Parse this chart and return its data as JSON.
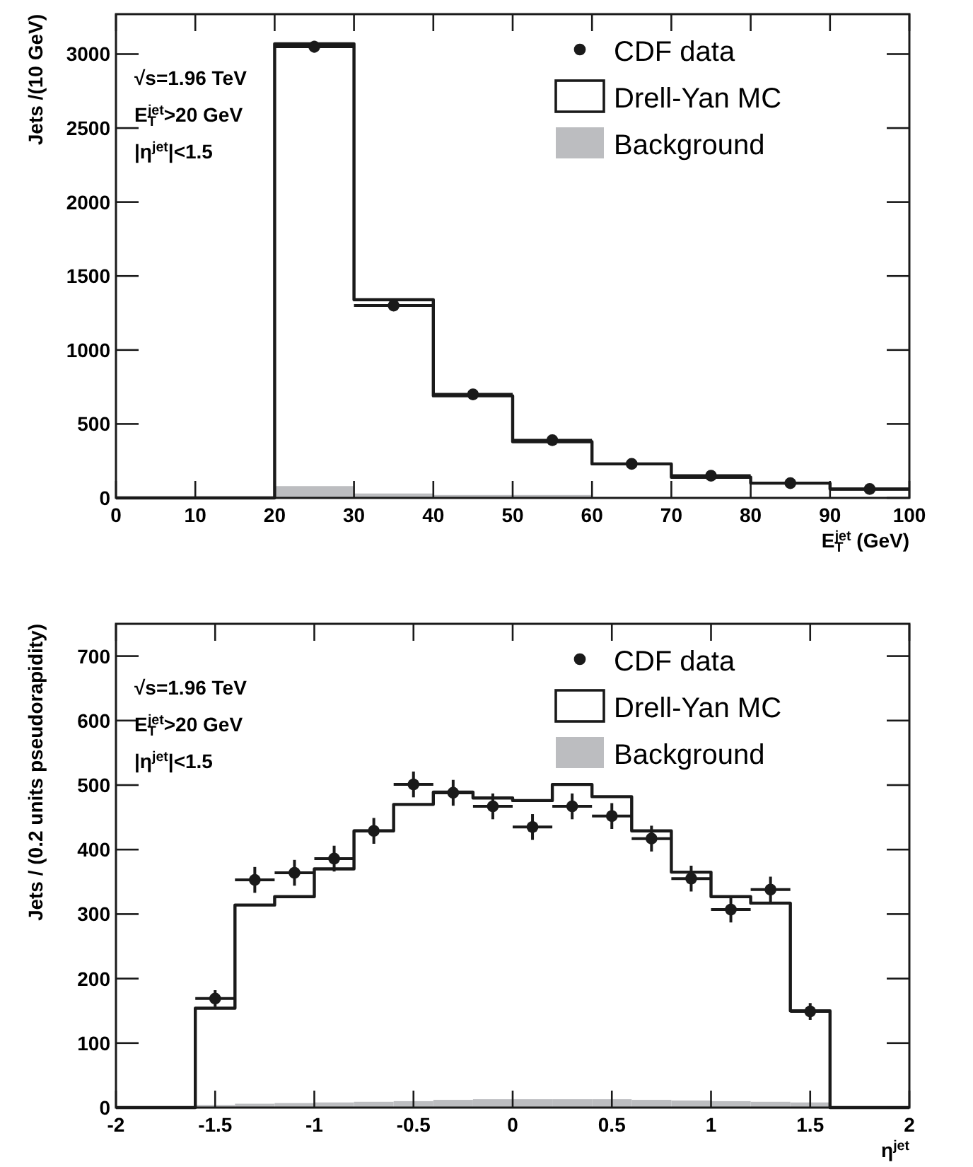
{
  "chart_data": [
    {
      "type": "histogram",
      "xlabel": "E$_{T}$$^{jet}$ (GeV)",
      "ylabel": "Jets /(10 GeV)",
      "bins": [
        0,
        10,
        20,
        30,
        40,
        50,
        60
      ],
      "series": [
        {
          "name": "CDF data",
          "type": "scatter",
          "marker": "circle",
          "color": "#1a1a1a",
          "x": [
            25,
            35,
            45,
            55,
            65,
            75,
            85,
            95
          ],
          "values": [
            3050,
            1300,
            700,
            390,
            230,
            150,
            100,
            60
          ],
          "errors": [
            40,
            null,
            null,
            null,
            null,
            null,
            null,
            null
          ],
          "xerrors": [
            5,
            5,
            5,
            5,
            5,
            5,
            5,
            5
          ]
        },
        {
          "name": "Drell-Yan MC",
          "type": "step",
          "marker": "none",
          "color": "#1a1a1a",
          "x": [
            0,
            10,
            20,
            30,
            40,
            50,
            60,
            70,
            80,
            90,
            100
          ],
          "values": [
            0,
            0,
            3070,
            1340,
            690,
            380,
            230,
            140,
            100,
            60,
            60
          ]
        },
        {
          "name": "Background",
          "color": "#bcbdc0",
          "values": [
            0,
            0,
            80,
            30,
            20,
            20
          ]
        }
      ],
      "xlim": [
        0,
        100
      ],
      "xticks": [
        0,
        10,
        20,
        30,
        40,
        50,
        60,
        70,
        80,
        90,
        100
      ],
      "ylim": [
        0,
        3270
      ],
      "yticks": [
        0,
        500,
        1000,
        1500,
        2000,
        2500,
        3000
      ],
      "annotations": [
        "√s=1.96 TeV",
        "E$_{T}$$^{jet}$>20 GeV",
        "|η$^{jet}$|<1.5"
      ],
      "legend": "top right",
      "grid": false
    },
    {
      "type": "histogram",
      "xlabel": "η$^{jet}$",
      "ylabel": "Jets / (0.2 units pseudorapidity)",
      "bins": [
        -2,
        -1.8,
        -1.6,
        -1.4,
        -1.2,
        -1,
        -0.8,
        -0.6,
        -0.4,
        -0.2,
        0,
        0.2,
        0.4,
        0.6,
        0.8,
        1,
        1.2,
        1.4,
        1.6,
        1.8,
        2
      ],
      "series": [
        {
          "name": "CDF data",
          "type": "scatter",
          "marker": "circle",
          "color": "#1a1a1a",
          "x": [
            -1.5,
            -1.3,
            -1.1,
            -0.9,
            -0.7,
            -0.5,
            -0.3,
            -0.1,
            0.1,
            0.3,
            0.5,
            0.7,
            0.9,
            1.1,
            1.3,
            1.5
          ],
          "values": [
            169,
            353,
            364,
            386,
            429,
            501,
            488,
            467,
            435,
            467,
            452,
            417,
            355,
            307,
            338,
            149
          ],
          "errors": [
            13,
            20,
            20,
            20,
            20,
            20,
            20,
            20,
            20,
            20,
            20,
            20,
            20,
            20,
            20,
            13
          ],
          "xerrors": [
            0.1,
            0.1,
            0.1,
            0.1,
            0.1,
            0.1,
            0.1,
            0.1,
            0.1,
            0.1,
            0.1,
            0.1,
            0.1,
            0.1,
            0.1,
            0.1
          ]
        },
        {
          "name": "Drell-Yan MC",
          "type": "step",
          "marker": "none",
          "color": "#1a1a1a",
          "x": [
            -2,
            -1.8,
            -1.6,
            -1.4,
            -1.2,
            -1,
            -0.8,
            -0.6,
            -0.4,
            -0.2,
            0,
            0.2,
            0.4,
            0.6,
            0.8,
            1,
            1.2,
            1.4,
            1.6,
            1.8,
            2
          ],
          "values": [
            0,
            0,
            154,
            314,
            327,
            370,
            429,
            470,
            489,
            480,
            476,
            501,
            482,
            429,
            365,
            327,
            317,
            150,
            0,
            0,
            0
          ]
        },
        {
          "name": "Background",
          "color": "#bcbdc0",
          "values": [
            0,
            0,
            4,
            6,
            7,
            8,
            9,
            10,
            12,
            13,
            13,
            13,
            13,
            12,
            11,
            10,
            9,
            8,
            0,
            0
          ]
        }
      ],
      "xlim": [
        -2,
        2
      ],
      "xticks": [
        -2,
        -1.5,
        -1,
        -0.5,
        0,
        0.5,
        1,
        1.5,
        2
      ],
      "ylim": [
        0,
        750
      ],
      "yticks": [
        0,
        100,
        200,
        300,
        400,
        500,
        600,
        700
      ],
      "annotations": [
        "√s=1.96 TeV",
        "E$_{T}$$^{jet}$>20 GeV",
        "|η$^{jet}$|<1.5"
      ],
      "legend": "top right",
      "grid": false
    }
  ]
}
